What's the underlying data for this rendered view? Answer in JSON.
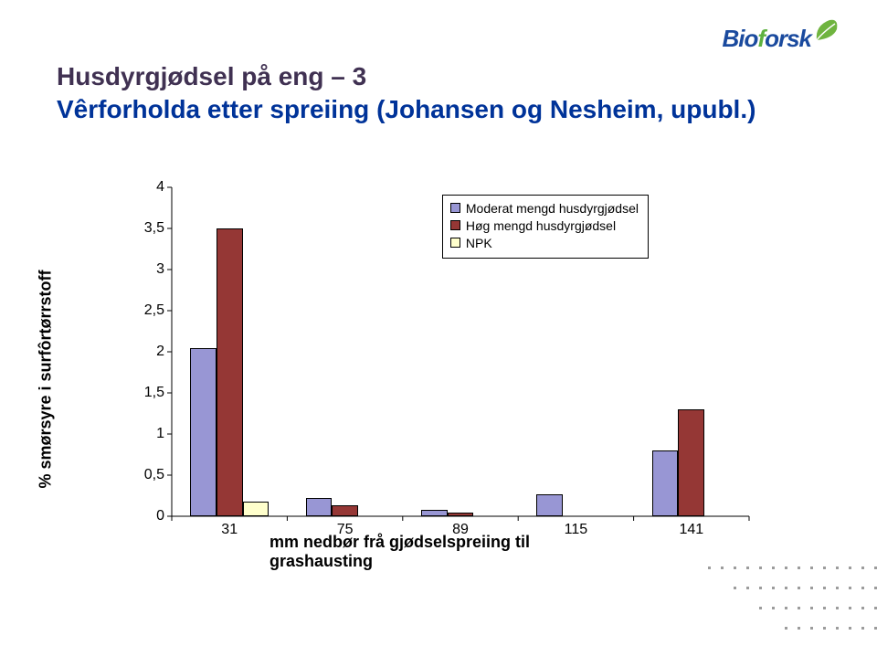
{
  "logo": {
    "name_part1": "Bio",
    "name_part2": "f",
    "name_part3": "orsk"
  },
  "title_line1": "Husdyrgjødsel på eng – 3",
  "title_line2": "Vêrforholda etter spreiing (Johansen og Nesheim, upubl.)",
  "chart": {
    "type": "bar",
    "y_label": "% smørsyre i surfôrtørrstoff",
    "x_label": "mm nedbør frå gjødselspreiing til grashausting",
    "y_ticks": [
      "0",
      "0,5",
      "1",
      "1,5",
      "2",
      "2,5",
      "3",
      "3,5",
      "4"
    ],
    "ylim": [
      0,
      4
    ],
    "categories": [
      "31",
      "75",
      "89",
      "115",
      "141"
    ],
    "series": [
      {
        "name": "Moderat mengd husdyrgjødsel",
        "color": "#9896d4",
        "values": [
          2.05,
          0.22,
          0.08,
          0.27,
          0.8
        ]
      },
      {
        "name": "Høg mengd husdyrgjødsel",
        "color": "#953735",
        "values": [
          3.5,
          0.13,
          0.04,
          0.0,
          1.3
        ]
      },
      {
        "name": "NPK",
        "color": "#ffffcc",
        "values": [
          0.18,
          0.0,
          0.0,
          0.0,
          0.0
        ]
      }
    ],
    "background_color": "#ffffff",
    "axis_color": "#000000",
    "bar_group_width": 0.68,
    "label_fontsize": 18,
    "tick_fontsize": 16,
    "legend_fontsize": 14,
    "legend_position": "inside-top-right"
  }
}
